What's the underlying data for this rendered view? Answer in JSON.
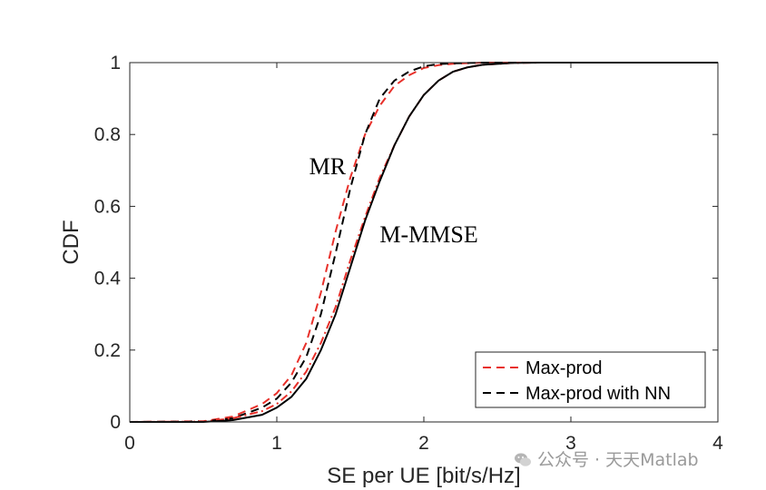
{
  "chart_data": {
    "type": "line",
    "xlabel": "SE per UE [bit/s/Hz]",
    "ylabel": "CDF",
    "xlim": [
      0,
      4
    ],
    "ylim": [
      0,
      1
    ],
    "xticks": [
      0,
      1,
      2,
      3,
      4
    ],
    "xtick_labels": [
      "0",
      "1",
      "2",
      "3",
      "4"
    ],
    "yticks": [
      0,
      0.2,
      0.4,
      0.6,
      0.8,
      1
    ],
    "ytick_labels": [
      "0",
      "0.2",
      "0.4",
      "0.6",
      "0.8",
      "1"
    ],
    "grid": false,
    "legend_position": "bottom-right",
    "legend": [
      {
        "label": "Max-prod",
        "color": "#e8302a",
        "dash": "dashed"
      },
      {
        "label": "Max-prod with NN",
        "color": "#000000",
        "dash": "dashed"
      }
    ],
    "annotations": [
      {
        "text": "MR",
        "x": 1.22,
        "y": 0.69
      },
      {
        "text": "M-MMSE",
        "x": 1.7,
        "y": 0.5
      }
    ],
    "series": [
      {
        "group": "MR",
        "legend": "Max-prod",
        "color": "#e8302a",
        "dash": "dashed",
        "points": [
          [
            0,
            0
          ],
          [
            0.5,
            0.002
          ],
          [
            0.7,
            0.015
          ],
          [
            0.9,
            0.05
          ],
          [
            1.0,
            0.08
          ],
          [
            1.1,
            0.13
          ],
          [
            1.2,
            0.22
          ],
          [
            1.3,
            0.36
          ],
          [
            1.4,
            0.53
          ],
          [
            1.5,
            0.68
          ],
          [
            1.6,
            0.8
          ],
          [
            1.7,
            0.88
          ],
          [
            1.8,
            0.935
          ],
          [
            1.9,
            0.965
          ],
          [
            2.0,
            0.985
          ],
          [
            2.1,
            0.993
          ],
          [
            2.2,
            0.997
          ],
          [
            2.4,
            1.0
          ],
          [
            4,
            1.0
          ]
        ]
      },
      {
        "group": "MR",
        "legend": "Max-prod with NN",
        "color": "#000000",
        "dash": "dashed",
        "points": [
          [
            0,
            0
          ],
          [
            0.5,
            0.001
          ],
          [
            0.7,
            0.01
          ],
          [
            0.9,
            0.04
          ],
          [
            1.0,
            0.065
          ],
          [
            1.1,
            0.11
          ],
          [
            1.2,
            0.18
          ],
          [
            1.3,
            0.3
          ],
          [
            1.4,
            0.47
          ],
          [
            1.5,
            0.65
          ],
          [
            1.6,
            0.8
          ],
          [
            1.7,
            0.9
          ],
          [
            1.8,
            0.95
          ],
          [
            1.9,
            0.975
          ],
          [
            2.0,
            0.99
          ],
          [
            2.1,
            0.996
          ],
          [
            2.2,
            0.998
          ],
          [
            2.4,
            1.0
          ],
          [
            4,
            1.0
          ]
        ]
      },
      {
        "group": "M-MMSE",
        "legend": "Max-prod",
        "color": "#e8302a",
        "dash": "dashdot",
        "points": [
          [
            0,
            0
          ],
          [
            0.5,
            0.001
          ],
          [
            0.7,
            0.01
          ],
          [
            0.9,
            0.03
          ],
          [
            1.0,
            0.05
          ],
          [
            1.1,
            0.085
          ],
          [
            1.2,
            0.14
          ],
          [
            1.3,
            0.22
          ],
          [
            1.4,
            0.32
          ],
          [
            1.5,
            0.45
          ],
          [
            1.6,
            0.57
          ],
          [
            1.7,
            0.68
          ],
          [
            1.8,
            0.77
          ],
          [
            1.9,
            0.85
          ],
          [
            2.0,
            0.91
          ],
          [
            2.1,
            0.95
          ],
          [
            2.2,
            0.975
          ],
          [
            2.3,
            0.987
          ],
          [
            2.4,
            0.994
          ],
          [
            2.6,
            0.999
          ],
          [
            2.8,
            1.0
          ],
          [
            4,
            1.0
          ]
        ]
      },
      {
        "group": "M-MMSE",
        "legend": "Max-prod with NN",
        "color": "#000000",
        "dash": "solid",
        "points": [
          [
            0,
            0
          ],
          [
            0.5,
            0.0
          ],
          [
            0.7,
            0.005
          ],
          [
            0.9,
            0.02
          ],
          [
            1.0,
            0.04
          ],
          [
            1.1,
            0.07
          ],
          [
            1.2,
            0.12
          ],
          [
            1.3,
            0.2
          ],
          [
            1.4,
            0.3
          ],
          [
            1.5,
            0.43
          ],
          [
            1.6,
            0.56
          ],
          [
            1.7,
            0.67
          ],
          [
            1.8,
            0.77
          ],
          [
            1.9,
            0.85
          ],
          [
            2.0,
            0.91
          ],
          [
            2.1,
            0.95
          ],
          [
            2.2,
            0.975
          ],
          [
            2.3,
            0.987
          ],
          [
            2.4,
            0.994
          ],
          [
            2.6,
            0.999
          ],
          [
            2.8,
            1.0
          ],
          [
            4,
            1.0
          ]
        ]
      }
    ]
  },
  "watermark": {
    "text": "公众号 · 天天Matlab",
    "icon": "wechat-icon"
  }
}
